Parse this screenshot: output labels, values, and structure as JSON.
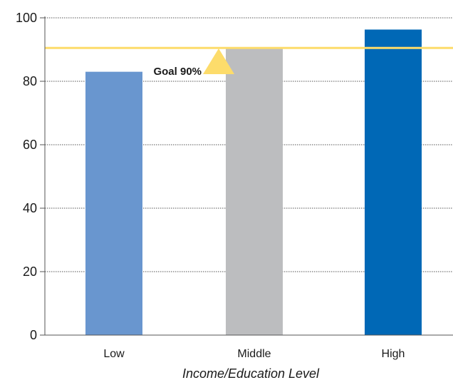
{
  "chart_data": {
    "type": "bar",
    "categories": [
      "Low",
      "Middle",
      "High"
    ],
    "values": [
      83,
      90.5,
      96.3
    ],
    "colors": [
      "#6996cf",
      "#bcbdbf",
      "#0068b6"
    ],
    "xlabel": "Income/Education Level",
    "ylabel": "",
    "ylim": [
      0,
      100
    ],
    "yticks": [
      0,
      20,
      40,
      60,
      80,
      100
    ],
    "grid": "horizontal dotted",
    "goal": {
      "label": "Goal 90%",
      "value": 90.5,
      "color": "#fddc6b",
      "marker": "triangle"
    }
  }
}
